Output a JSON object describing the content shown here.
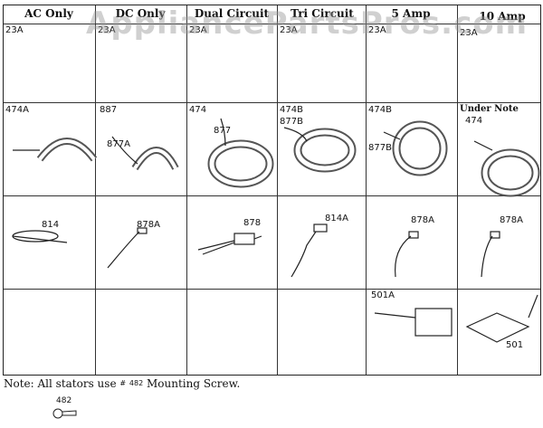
{
  "watermark": "AppliancePartsPros.com",
  "columns": [
    "AC Only",
    "DC Only",
    "Dual Circuit",
    "Tri Circuit",
    "5 Amp",
    "10 Amp"
  ],
  "row1": [
    "23A",
    "23A",
    "23A",
    "23A",
    "23A",
    "23A"
  ],
  "row2": {
    "ac": "474A",
    "dc_a": "887",
    "dc_b": "877A",
    "dual_a": "474",
    "dual_b": "877",
    "tri_a": "474B",
    "tri_b": "877B",
    "amp5_a": "474B",
    "amp5_b": "877B",
    "amp10_note": "Under Note",
    "amp10_a": "474"
  },
  "row3": [
    "814",
    "878A",
    "878",
    "814A",
    "878A",
    "878A"
  ],
  "row4": {
    "amp5": "501A",
    "amp10": "501"
  },
  "note": {
    "prefix": "Note: All stators use ",
    "hash": "#",
    "part": "482",
    "suffix": " Mounting Screw."
  },
  "screw_label": "482"
}
